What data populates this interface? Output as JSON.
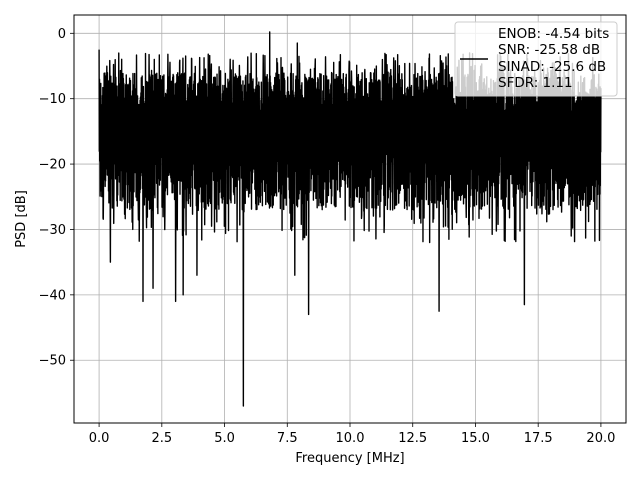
{
  "chart_data": {
    "type": "line",
    "title": "",
    "xlabel": "Frequency [MHz]",
    "ylabel": "PSD [dB]",
    "xlim": [
      -1.0,
      21.0
    ],
    "ylim": [
      -59.6,
      2.8
    ],
    "xticks": [
      0.0,
      2.5,
      5.0,
      7.5,
      10.0,
      12.5,
      15.0,
      17.5,
      20.0
    ],
    "xtick_labels": [
      "0.0",
      "2.5",
      "5.0",
      "7.5",
      "10.0",
      "12.5",
      "15.0",
      "17.5",
      "20.0"
    ],
    "yticks": [
      0,
      -10,
      -20,
      -30,
      -40,
      -50
    ],
    "ytick_labels": [
      "0",
      "−10",
      "−20",
      "−30",
      "−40",
      "−50"
    ],
    "grid": true,
    "legend": {
      "placement": "upper right",
      "line_series": "SINAD: -25.6 dB",
      "entries": [
        "ENOB: -4.54 bits",
        "SNR: -25.58 dB",
        "SINAD: -25.6 dB",
        "SFDR: 1.11"
      ]
    },
    "series": [
      {
        "name": "SINAD: -25.6 dB",
        "color": "#000000",
        "style": "noise band",
        "x_range": [
          0.0,
          20.0
        ],
        "typical_band": [
          -27,
          -6
        ],
        "peaks": [
          {
            "x": 0.0,
            "y": -2.5
          },
          {
            "x": 6.8,
            "y": 0.2
          },
          {
            "x": 7.9,
            "y": -1.5
          }
        ],
        "dips": [
          {
            "x": 0.45,
            "y": -35
          },
          {
            "x": 1.75,
            "y": -41
          },
          {
            "x": 2.15,
            "y": -39
          },
          {
            "x": 3.05,
            "y": -41
          },
          {
            "x": 3.35,
            "y": -40
          },
          {
            "x": 3.9,
            "y": -37
          },
          {
            "x": 5.75,
            "y": -57
          },
          {
            "x": 7.8,
            "y": -37
          },
          {
            "x": 8.35,
            "y": -43
          },
          {
            "x": 13.55,
            "y": -42.5
          },
          {
            "x": 16.95,
            "y": -41.5
          }
        ]
      }
    ]
  }
}
